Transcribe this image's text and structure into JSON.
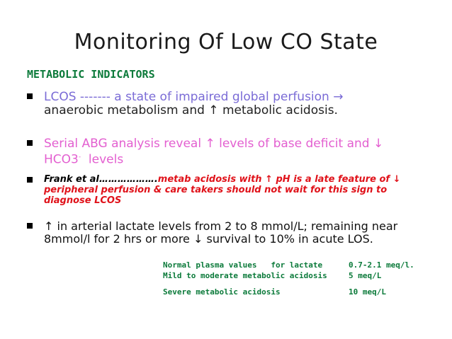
{
  "title": "Monitoring Of Low CO State",
  "section_heading": "METABOLIC INDICATORS",
  "bullets": {
    "b1_line1": "LCOS ------- a state of impaired global perfusion →",
    "b1_line2": "anaerobic metabolism and ↑ metabolic acidosis.",
    "b2_line1": "Serial ABG analysis  reveal ↑ levels of base deficit and ↓",
    "b2_line2_pre": "HCO3",
    "b2_line2_sup": "-",
    "b2_line2_post": "  levels",
    "b3_lead": "Frank et al……………….",
    "b3_line1": "metab acidosis with ↑ pH is a late feature of ↓",
    "b3_line2": "peripheral perfusion & care takers should not wait for this sign to",
    "b3_line3": "diagnose LCOS",
    "b4_line1": "↑ in arterial lactate levels from 2 to 8 mmol/L; remaining near",
    "b4_line2": "8mmol/l for 2 hrs or more ↓ survival to 10% in acute LOS."
  },
  "lactate_table": {
    "rows": [
      {
        "label": "Normal plasma values   for lactate",
        "value": "0.7-2.1 meq/l."
      },
      {
        "label": "Mild to moderate metabolic acidosis",
        "value": "5 meq/L"
      },
      {
        "label": "Severe metabolic acidosis",
        "value": "10 meq/L"
      }
    ]
  },
  "colors": {
    "heading_green": "#0b7a3a",
    "bullet1_purple": "#7a6bd6",
    "bullet2_pink": "#e35fd0",
    "bullet3_red": "#e0121a"
  }
}
